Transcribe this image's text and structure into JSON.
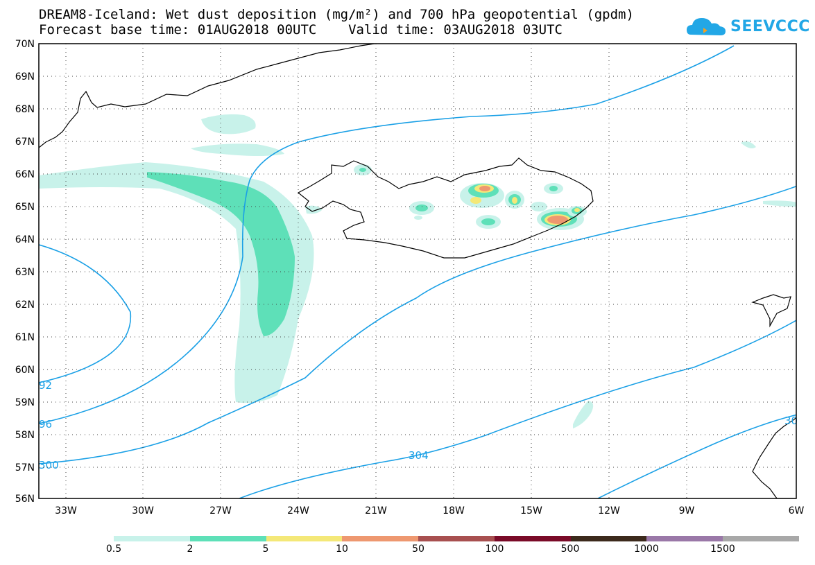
{
  "header": {
    "title_line1": "DREAM8-Iceland: Wet dust deposition (mg/m²) and 700 hPa geopotential (gpdm)",
    "title_line2": "Forecast base time: 01AUG2018 00UTC    Valid time: 03AUG2018 03UTC"
  },
  "logo": {
    "text": "SEEVCCC",
    "color": "#22a7e6"
  },
  "axes": {
    "lat_labels": [
      "70N",
      "69N",
      "68N",
      "67N",
      "66N",
      "65N",
      "64N",
      "63N",
      "62N",
      "61N",
      "60N",
      "59N",
      "58N",
      "57N",
      "56N"
    ],
    "lon_labels": [
      "33W",
      "30W",
      "27W",
      "24W",
      "21W",
      "18W",
      "15W",
      "12W",
      "9W",
      "6W"
    ]
  },
  "contour_labels": [
    "304",
    "92",
    "96",
    "300",
    "30"
  ],
  "legend": {
    "labels": [
      "0.5",
      "2",
      "5",
      "10",
      "50",
      "100",
      "500",
      "1000",
      "1500"
    ],
    "colors": [
      "#c8f2ea",
      "#5ee0b8",
      "#f4e878",
      "#ee9870",
      "#a85050",
      "#7a0a28",
      "#3c2a1c",
      "#9a78a8",
      "#a8a8a8"
    ]
  },
  "colors": {
    "contour": "#1aa0e6",
    "dust_light": "#c8f2ea",
    "dust_mid": "#5ee0b8",
    "dust_yellow": "#f4e878",
    "dust_orange": "#ee9870",
    "coast": "#000000"
  }
}
